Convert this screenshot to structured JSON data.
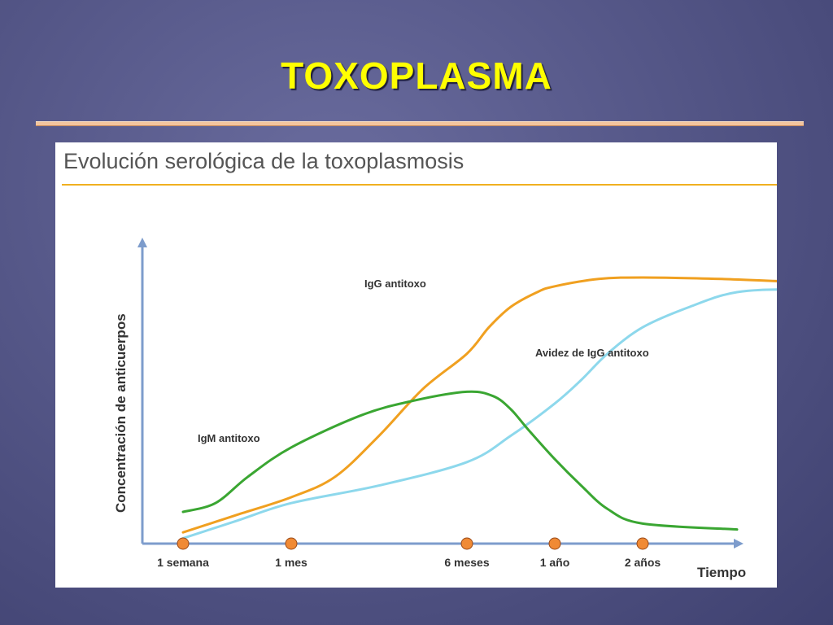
{
  "slide": {
    "title": "TOXOPLASMA"
  },
  "chart_data": {
    "type": "line",
    "title": "Evolución serológica de la toxoplasmosis",
    "xlabel": "Tiempo",
    "ylabel": "Concentración de anticuerpos",
    "x_ticks": [
      "1 semana",
      "1 mes",
      "6 meses",
      "1 año",
      "2 años"
    ],
    "ylim": [
      0,
      100
    ],
    "grid": false,
    "colors": {
      "igg": "#f0a020",
      "igm": "#3aa632",
      "avidity": "#8dd8ec",
      "axis": "#7d9ccc",
      "marker": "#f08a35",
      "title_rule": "#f0b020"
    },
    "series": [
      {
        "name": "IgG antitoxo",
        "key": "igg",
        "x": [
          0,
          0.5,
          1,
          1.25,
          1.5,
          1.75,
          2,
          2.25,
          2.5,
          2.8,
          3,
          3.5,
          4,
          4.5,
          5,
          5.55
        ],
        "values": [
          3,
          9,
          15,
          22,
          36,
          52,
          64,
          73,
          80,
          85,
          87,
          89.5,
          90,
          89.5,
          88.5,
          88
        ]
      },
      {
        "name": "IgM antitoxo",
        "key": "igm",
        "x": [
          0,
          0.3,
          0.6,
          1,
          1.4,
          1.7,
          2,
          2.3,
          2.5,
          2.7,
          3,
          3.3,
          3.6,
          4,
          4.6
        ],
        "values": [
          10,
          13,
          22,
          32,
          43,
          48,
          51,
          49.5,
          45,
          38,
          28,
          19,
          11,
          6,
          4
        ]
      },
      {
        "name": "Avidez de IgG antitoxo",
        "key": "avidity",
        "x": [
          0,
          0.5,
          1,
          1.5,
          2,
          2.5,
          3,
          3.3,
          3.6,
          4,
          4.3,
          4.6,
          5,
          5.55
        ],
        "values": [
          1,
          7,
          13,
          19,
          27,
          36,
          47,
          55,
          64,
          73,
          80,
          85,
          86,
          86
        ]
      }
    ]
  }
}
